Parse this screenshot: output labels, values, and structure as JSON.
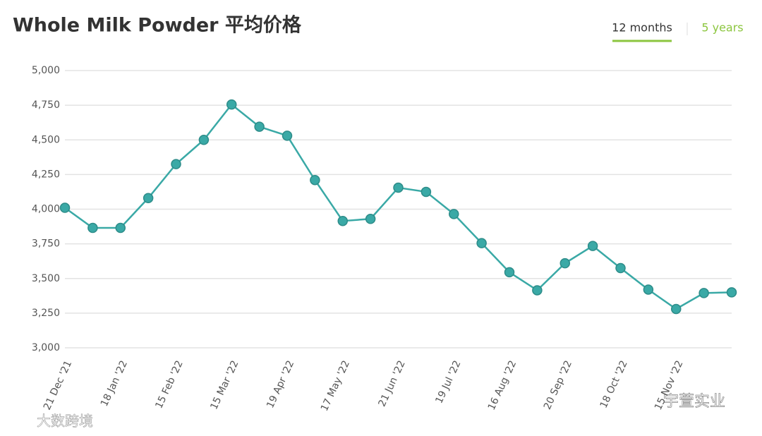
{
  "chart_data": {
    "type": "line",
    "title": "Whole Milk Powder 平均价格",
    "tabs": [
      "12 months",
      "5 years"
    ],
    "watermarks": [
      "大数跨境",
      "宇萱实业"
    ],
    "categories": [
      "21 Dec '21",
      null,
      "18 Jan '22",
      null,
      "15 Feb '22",
      null,
      "15 Mar '22",
      null,
      "19 Apr '22",
      null,
      "17 May '22",
      null,
      "21 Jun '22",
      null,
      "19 Jul '22",
      null,
      "16 Aug '22",
      null,
      "20 Sep '22",
      null,
      "18 Oct '22",
      null,
      "15 Nov '22",
      null,
      null
    ],
    "series": [
      {
        "name": "Whole Milk Powder",
        "color": "#3aa9a6",
        "values": [
          4010,
          3865,
          3865,
          4080,
          4325,
          4500,
          4755,
          4595,
          4530,
          4210,
          3915,
          3930,
          4155,
          4125,
          3965,
          3755,
          3545,
          3415,
          3610,
          3735,
          3575,
          3420,
          3280,
          3395,
          3400
        ]
      }
    ],
    "ylim": [
      3000,
      5000
    ],
    "yticks": [
      {
        "value": 3000,
        "label": "3,000"
      },
      {
        "value": 3250,
        "label": "3,250"
      },
      {
        "value": 3500,
        "label": "3,500"
      },
      {
        "value": 3750,
        "label": "3,750"
      },
      {
        "value": 4000,
        "label": "4,000"
      },
      {
        "value": 4250,
        "label": "4,250"
      },
      {
        "value": 4500,
        "label": "4,500"
      },
      {
        "value": 4750,
        "label": "4,750"
      },
      {
        "value": 5000,
        "label": "5,000"
      }
    ],
    "grid": true
  }
}
